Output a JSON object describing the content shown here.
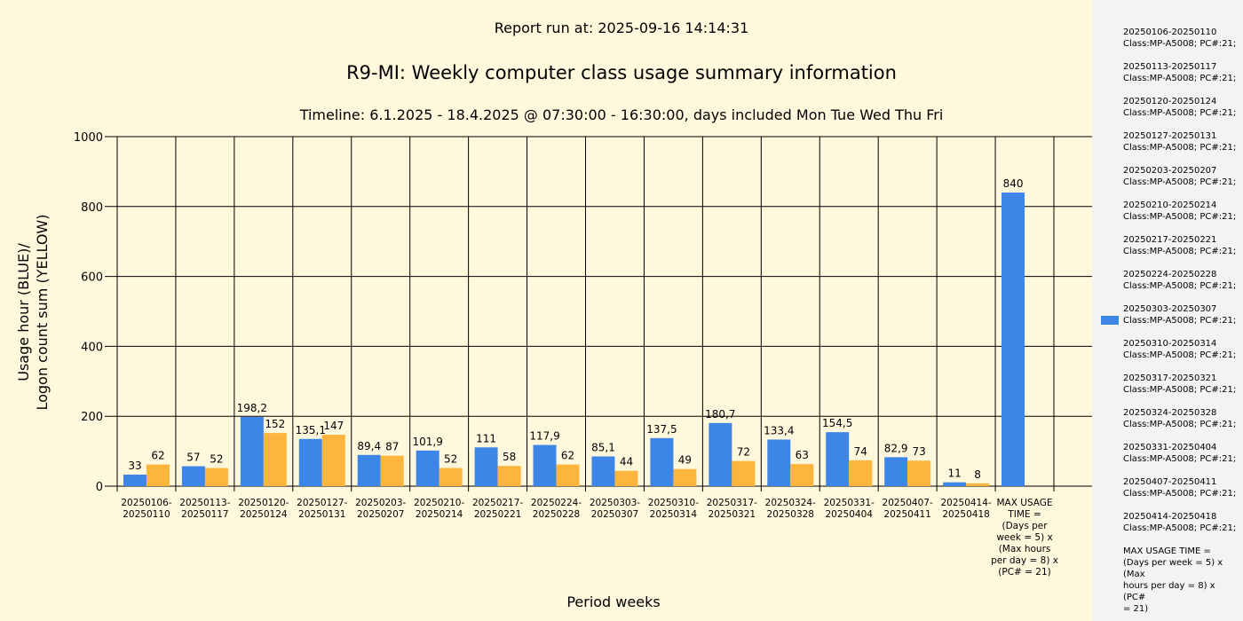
{
  "report_run": "Report run at: 2025-09-16 14:14:31",
  "colors": {
    "blue": "#3d86e8",
    "yellow": "#fdb53e",
    "background": "#fff8dc",
    "legend_bg": "#f3f3f3"
  },
  "chart_data": {
    "type": "bar",
    "title": "R9-MI: Weekly computer class usage summary information",
    "subtitle": "Timeline:  6.1.2025  - 18.4.2025  @  07:30:00 -  16:30:00, days included Mon Tue Wed Thu Fri",
    "xlabel": "Period weeks",
    "ylabel": [
      "Usage hour (BLUE)/",
      "Logon count sum (YELLOW)"
    ],
    "ylim": [
      0,
      1000
    ],
    "yticks": [
      0,
      200,
      400,
      600,
      800,
      1000
    ],
    "grid": true,
    "legend_position": "right",
    "categories": [
      [
        "20250106-",
        "20250110"
      ],
      [
        "20250113-",
        "20250117"
      ],
      [
        "20250120-",
        "20250124"
      ],
      [
        "20250127-",
        "20250131"
      ],
      [
        "20250203-",
        "20250207"
      ],
      [
        "20250210-",
        "20250214"
      ],
      [
        "20250217-",
        "20250221"
      ],
      [
        "20250224-",
        "20250228"
      ],
      [
        "20250303-",
        "20250307"
      ],
      [
        "20250310-",
        "20250314"
      ],
      [
        "20250317-",
        "20250321"
      ],
      [
        "20250324-",
        "20250328"
      ],
      [
        "20250331-",
        "20250404"
      ],
      [
        "20250407-",
        "20250411"
      ],
      [
        "20250414-",
        "20250418"
      ],
      [
        "MAX USAGE",
        "TIME =",
        "(Days per",
        "week = 5) x",
        "(Max hours",
        "per day = 8) x",
        "(PC# = 21)"
      ]
    ],
    "series": [
      {
        "color": "#3d86e8",
        "values": [
          33,
          57,
          198.2,
          135.1,
          89.4,
          101.9,
          111,
          117.9,
          85.1,
          137.5,
          180.7,
          133.4,
          154.5,
          82.9,
          11,
          840
        ],
        "labels": [
          "33",
          "57",
          "198,2",
          "135,1",
          "89,4",
          "101,9",
          "111",
          "117,9",
          "85,1",
          "137,5",
          "180,7",
          "133,4",
          "154,5",
          "82,9",
          "11",
          "840"
        ]
      },
      {
        "color": "#fdb53e",
        "values": [
          62,
          52,
          152,
          147,
          87,
          52,
          58,
          62,
          44,
          49,
          72,
          63,
          74,
          73,
          8,
          null
        ],
        "labels": [
          "62",
          "52",
          "152",
          "147",
          "87",
          "52",
          "58",
          "62",
          "44",
          "49",
          "72",
          "63",
          "74",
          "73",
          "8",
          ""
        ]
      }
    ]
  },
  "legend": {
    "swatch_item_index": 8,
    "items": [
      [
        "20250106-20250110",
        "Class:MP-A5008; PC#:21;"
      ],
      [
        "20250113-20250117",
        "Class:MP-A5008; PC#:21;"
      ],
      [
        "20250120-20250124",
        "Class:MP-A5008; PC#:21;"
      ],
      [
        "20250127-20250131",
        "Class:MP-A5008; PC#:21;"
      ],
      [
        "20250203-20250207",
        "Class:MP-A5008; PC#:21;"
      ],
      [
        "20250210-20250214",
        "Class:MP-A5008; PC#:21;"
      ],
      [
        "20250217-20250221",
        "Class:MP-A5008; PC#:21;"
      ],
      [
        "20250224-20250228",
        "Class:MP-A5008; PC#:21;"
      ],
      [
        "20250303-20250307",
        "Class:MP-A5008; PC#:21;"
      ],
      [
        "20250310-20250314",
        "Class:MP-A5008; PC#:21;"
      ],
      [
        "20250317-20250321",
        "Class:MP-A5008; PC#:21;"
      ],
      [
        "20250324-20250328",
        "Class:MP-A5008; PC#:21;"
      ],
      [
        "20250331-20250404",
        "Class:MP-A5008; PC#:21;"
      ],
      [
        "20250407-20250411",
        "Class:MP-A5008; PC#:21;"
      ],
      [
        "20250414-20250418",
        "Class:MP-A5008; PC#:21;"
      ],
      [
        "MAX USAGE TIME =",
        " (Days per week = 5) x (Max",
        "hours per day = 8) x (PC#",
        "= 21)"
      ]
    ]
  }
}
